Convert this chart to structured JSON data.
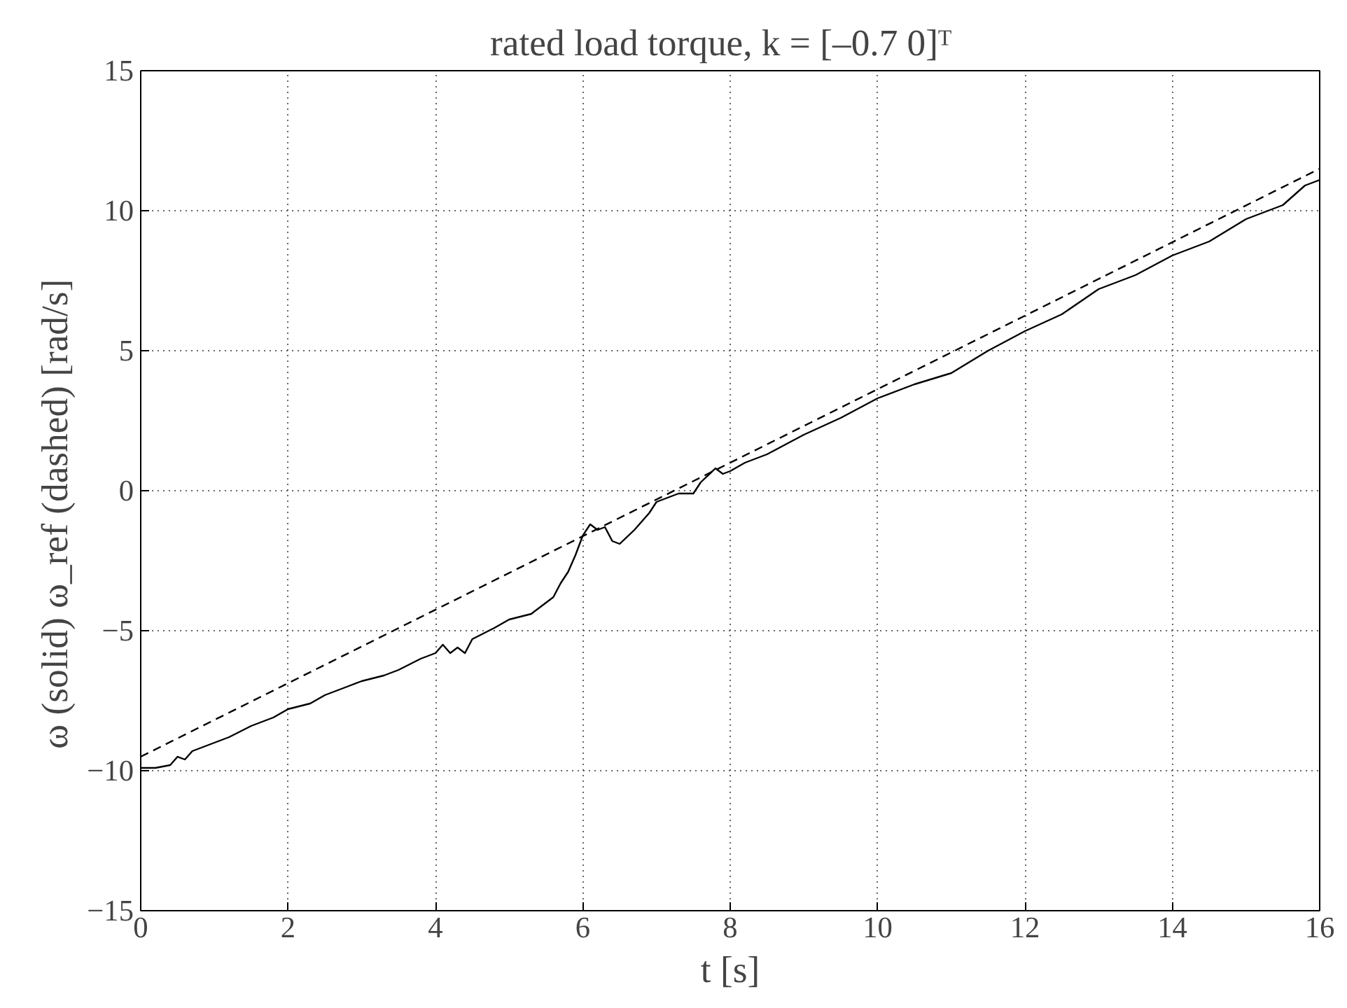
{
  "chart_data": {
    "type": "line",
    "title": "rated load torque, k = [–0.7   0]ᵀ",
    "xlabel": "t [s]",
    "ylabel": "ω (solid)     ω_ref (dashed)  [rad/s]",
    "xlim": [
      0,
      16
    ],
    "ylim": [
      -15,
      15
    ],
    "xticks": [
      0,
      2,
      4,
      6,
      8,
      10,
      12,
      14,
      16
    ],
    "yticks": [
      -15,
      -10,
      -5,
      0,
      5,
      10,
      15
    ],
    "grid": true,
    "series": [
      {
        "color": "#000000",
        "line_style": "solid",
        "x": [
          0,
          0.2,
          0.4,
          0.5,
          0.6,
          0.7,
          0.8,
          1.0,
          1.2,
          1.5,
          1.8,
          2.0,
          2.3,
          2.5,
          2.8,
          3.0,
          3.3,
          3.5,
          3.8,
          4.0,
          4.1,
          4.2,
          4.3,
          4.4,
          4.5,
          4.8,
          5.0,
          5.3,
          5.5,
          5.6,
          5.7,
          5.8,
          5.9,
          6.0,
          6.1,
          6.2,
          6.3,
          6.4,
          6.5,
          6.7,
          6.9,
          7.0,
          7.3,
          7.5,
          7.6,
          7.8,
          7.9,
          8.0,
          8.2,
          8.5,
          9.0,
          9.5,
          10.0,
          10.5,
          11.0,
          11.5,
          12.0,
          12.5,
          13.0,
          13.5,
          14.0,
          14.5,
          15.0,
          15.5,
          15.8,
          16.0
        ],
        "values": [
          -9.9,
          -9.9,
          -9.8,
          -9.5,
          -9.6,
          -9.3,
          -9.2,
          -9.0,
          -8.8,
          -8.4,
          -8.1,
          -7.8,
          -7.6,
          -7.3,
          -7.0,
          -6.8,
          -6.6,
          -6.4,
          -6.0,
          -5.8,
          -5.5,
          -5.8,
          -5.6,
          -5.8,
          -5.3,
          -4.9,
          -4.6,
          -4.4,
          -4.0,
          -3.8,
          -3.3,
          -2.9,
          -2.3,
          -1.6,
          -1.2,
          -1.4,
          -1.3,
          -1.8,
          -1.9,
          -1.4,
          -0.8,
          -0.4,
          -0.1,
          -0.1,
          0.3,
          0.8,
          0.6,
          0.7,
          1.0,
          1.3,
          2.0,
          2.6,
          3.3,
          3.8,
          4.2,
          5.0,
          5.7,
          6.3,
          7.2,
          7.7,
          8.4,
          8.9,
          9.7,
          10.2,
          10.9,
          11.1
        ]
      },
      {
        "color": "#000000",
        "line_style": "dashed",
        "x": [
          0,
          16
        ],
        "values": [
          -9.5,
          11.5
        ]
      }
    ]
  }
}
